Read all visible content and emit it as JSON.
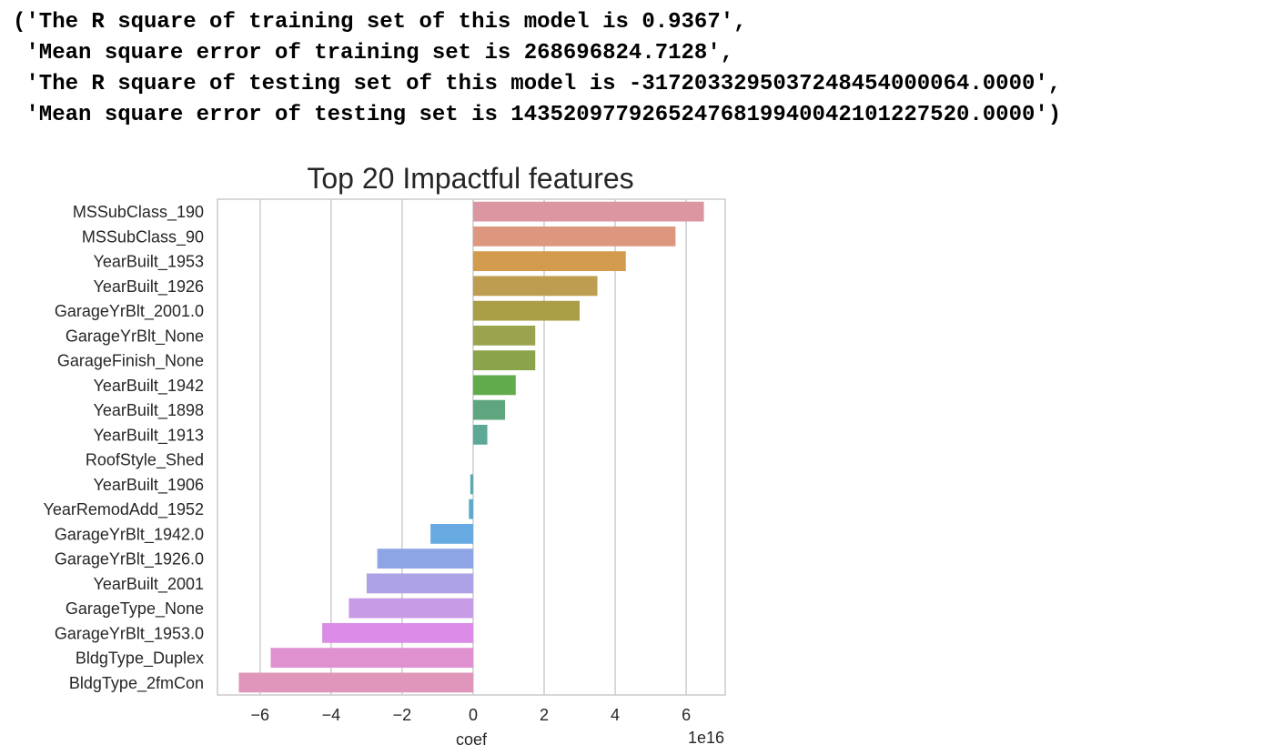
{
  "output": {
    "lines": [
      "('The R square of training set of this model is 0.9367',",
      " 'Mean square error of training set is 268696824.7128',",
      " 'The R square of testing set of this model is -3172033295037248454000064.0000',",
      " 'Mean square error of testing set is 14352097792652476819940042101227520.0000')"
    ]
  },
  "chart_data": {
    "type": "bar",
    "orientation": "horizontal",
    "title": "Top 20 Impactful features",
    "xlabel": "coef",
    "ylabel": "",
    "offset_text": "1e16",
    "xlim": [
      -7.2,
      7.1
    ],
    "xticks": [
      -6,
      -4,
      -2,
      0,
      2,
      4,
      6
    ],
    "xtick_labels": [
      "−6",
      "−4",
      "−2",
      "0",
      "2",
      "4",
      "6"
    ],
    "grid": "vertical",
    "categories": [
      "MSSubClass_190",
      "MSSubClass_90",
      "YearBuilt_1953",
      "YearBuilt_1926",
      "GarageYrBlt_2001.0",
      "GarageYrBlt_None",
      "GarageFinish_None",
      "YearBuilt_1942",
      "YearBuilt_1898",
      "YearBuilt_1913",
      "RoofStyle_Shed",
      "YearBuilt_1906",
      "YearRemodAdd_1952",
      "GarageYrBlt_1942.0",
      "GarageYrBlt_1926.0",
      "YearBuilt_2001",
      "GarageType_None",
      "GarageYrBlt_1953.0",
      "BldgType_Duplex",
      "BldgType_2fmCon"
    ],
    "values": [
      6.5,
      5.7,
      4.3,
      3.5,
      3.0,
      1.75,
      1.75,
      1.2,
      0.9,
      0.4,
      0.0,
      -0.08,
      -0.12,
      -1.2,
      -2.7,
      -3.0,
      -3.5,
      -4.25,
      -5.7,
      -6.6
    ],
    "colors": [
      "#dc96a2",
      "#de977f",
      "#d39b4e",
      "#bd9d4f",
      "#aa9e47",
      "#9aa44f",
      "#8ba34a",
      "#62ab4c",
      "#5fa67e",
      "#5ba996",
      "#5ca7a2",
      "#5ba8ae",
      "#5eaacc",
      "#68aae2",
      "#8ea5e5",
      "#ada2e6",
      "#c79be6",
      "#da8ce6",
      "#df90cf",
      "#df96ba"
    ]
  }
}
